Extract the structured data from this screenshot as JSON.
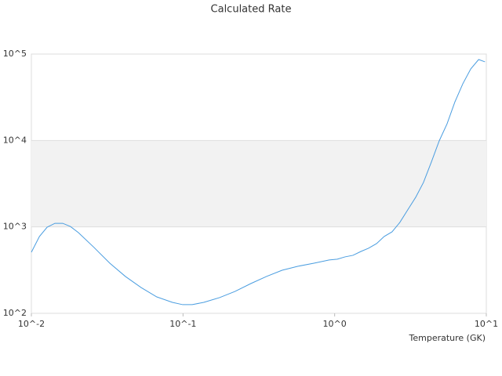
{
  "chart_data": {
    "type": "line",
    "title": "Calculated Rate",
    "x_label": "Temperature (GK)",
    "log_x": true,
    "log_y": true,
    "grid": true,
    "bands": true,
    "xlim": [
      0.01,
      10
    ],
    "ylim": [
      100,
      100000
    ],
    "xticks": [
      {
        "value": 0.01,
        "label": "10^-2"
      },
      {
        "value": 0.1,
        "label": "10^-1"
      },
      {
        "value": 1,
        "label": "10^0"
      },
      {
        "value": 10,
        "label": "10^1"
      }
    ],
    "yticks": [
      {
        "value": 100,
        "label": "10^2"
      },
      {
        "value": 1000,
        "label": "10^3"
      },
      {
        "value": 10000,
        "label": "10^4"
      },
      {
        "value": 100000,
        "label": "10^5"
      }
    ],
    "x": [
      0.01,
      0.0113,
      0.0127,
      0.0143,
      0.0161,
      0.0181,
      0.0204,
      0.0259,
      0.0329,
      0.0417,
      0.0529,
      0.0671,
      0.0851,
      0.0995,
      0.115,
      0.137,
      0.174,
      0.22,
      0.28,
      0.355,
      0.45,
      0.57,
      0.73,
      0.92,
      1.04,
      1.17,
      1.32,
      1.49,
      1.67,
      1.89,
      2.12,
      2.39,
      2.69,
      3.03,
      3.42,
      3.85,
      4.34,
      4.89,
      5.51,
      6.21,
      7.0,
      7.9,
      8.9,
      9.8
    ],
    "series": [
      {
        "color": "#4a9de0",
        "values": [
          509,
          774,
          993,
          1100,
          1100,
          1010,
          860,
          578,
          380,
          267,
          199,
          155,
          134,
          126,
          126,
          134,
          152,
          179,
          221,
          267,
          315,
          350,
          380,
          414,
          423,
          450,
          469,
          520,
          566,
          641,
          774,
          877,
          1127,
          1573,
          2197,
          3266,
          5620,
          9890,
          15600,
          28000,
          45300,
          67400,
          86400,
          81300
        ]
      }
    ]
  }
}
